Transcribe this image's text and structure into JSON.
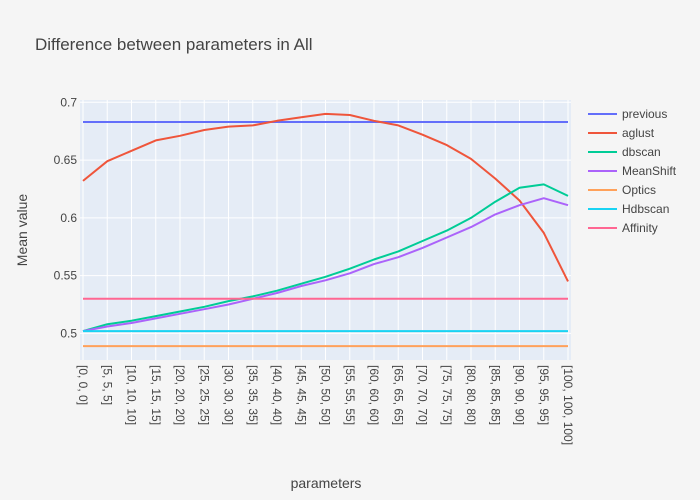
{
  "chart_data": {
    "type": "line",
    "title": "Difference between parameters in All",
    "xlabel": "parameters",
    "ylabel": "Mean value",
    "ylim": [
      0.477,
      0.702
    ],
    "yticks": [
      "0.5",
      "0.55",
      "0.6",
      "0.65",
      "0.7"
    ],
    "ytick_values": [
      0.5,
      0.55,
      0.6,
      0.65,
      0.7
    ],
    "grid": true,
    "legend_position": "top-right",
    "categories": [
      "[0, 0, 0]",
      "[5, 5, 5]",
      "[10, 10, 10]",
      "[15, 15, 15]",
      "[20, 20, 20]",
      "[25, 25, 25]",
      "[30, 30, 30]",
      "[35, 35, 35]",
      "[40, 40, 40]",
      "[45, 45, 45]",
      "[50, 50, 50]",
      "[55, 55, 55]",
      "[60, 60, 60]",
      "[65, 65, 65]",
      "[70, 70, 70]",
      "[75, 75, 75]",
      "[80, 80, 80]",
      "[85, 85, 85]",
      "[90, 90, 90]",
      "[95, 95, 95]",
      "[100, 100, 100]"
    ],
    "series": [
      {
        "name": "previous",
        "color": "#636efa",
        "values": [
          0.683,
          0.683,
          0.683,
          0.683,
          0.683,
          0.683,
          0.683,
          0.683,
          0.683,
          0.683,
          0.683,
          0.683,
          0.683,
          0.683,
          0.683,
          0.683,
          0.683,
          0.683,
          0.683,
          0.683,
          0.683
        ]
      },
      {
        "name": "aglust",
        "color": "#ef553b",
        "values": [
          0.632,
          0.649,
          0.658,
          0.667,
          0.671,
          0.676,
          0.679,
          0.68,
          0.684,
          0.687,
          0.69,
          0.689,
          0.684,
          0.68,
          0.672,
          0.663,
          0.651,
          0.634,
          0.615,
          0.587,
          0.545
        ]
      },
      {
        "name": "dbscan",
        "color": "#00cc96",
        "values": [
          0.502,
          0.508,
          0.511,
          0.515,
          0.519,
          0.523,
          0.528,
          0.532,
          0.537,
          0.543,
          0.549,
          0.556,
          0.564,
          0.571,
          0.58,
          0.589,
          0.6,
          0.614,
          0.626,
          0.629,
          0.619
        ]
      },
      {
        "name": "MeanShift",
        "color": "#ab63fa",
        "values": [
          0.502,
          0.506,
          0.509,
          0.513,
          0.517,
          0.521,
          0.525,
          0.53,
          0.535,
          0.541,
          0.546,
          0.552,
          0.56,
          0.566,
          0.574,
          0.583,
          0.592,
          0.603,
          0.611,
          0.617,
          0.611
        ]
      },
      {
        "name": "Optics",
        "color": "#ffa15a",
        "values": [
          0.489,
          0.489,
          0.489,
          0.489,
          0.489,
          0.489,
          0.489,
          0.489,
          0.489,
          0.489,
          0.489,
          0.489,
          0.489,
          0.489,
          0.489,
          0.489,
          0.489,
          0.489,
          0.489,
          0.489,
          0.489
        ]
      },
      {
        "name": "Hdbscan",
        "color": "#19d3f3",
        "values": [
          0.502,
          0.502,
          0.502,
          0.502,
          0.502,
          0.502,
          0.502,
          0.502,
          0.502,
          0.502,
          0.502,
          0.502,
          0.502,
          0.502,
          0.502,
          0.502,
          0.502,
          0.502,
          0.502,
          0.502,
          0.502
        ]
      },
      {
        "name": "Affinity",
        "color": "#ff6692",
        "values": [
          0.53,
          0.53,
          0.53,
          0.53,
          0.53,
          0.53,
          0.53,
          0.53,
          0.53,
          0.53,
          0.53,
          0.53,
          0.53,
          0.53,
          0.53,
          0.53,
          0.53,
          0.53,
          0.53,
          0.53,
          0.53
        ]
      }
    ]
  }
}
